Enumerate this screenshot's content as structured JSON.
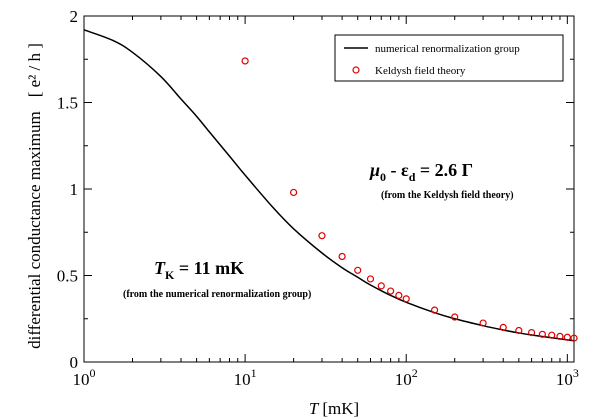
{
  "chart_data": {
    "type": "line",
    "xscale": "log",
    "xlim": [
      1,
      1100
    ],
    "ylim": [
      0,
      2
    ],
    "xticks": [
      {
        "value": 1,
        "base": "10",
        "exp": "0"
      },
      {
        "value": 10,
        "base": "10",
        "exp": "1"
      },
      {
        "value": 100,
        "base": "10",
        "exp": "2"
      },
      {
        "value": 1000,
        "base": "10",
        "exp": "3"
      }
    ],
    "yticks": [
      {
        "value": 0,
        "label": "0"
      },
      {
        "value": 0.5,
        "label": "0.5"
      },
      {
        "value": 1,
        "label": "1"
      },
      {
        "value": 1.5,
        "label": "1.5"
      },
      {
        "value": 2,
        "label": "2"
      }
    ],
    "xlabel": {
      "italic": "T",
      "rest": "[mK]"
    },
    "ylabel": {
      "main": "differential conductance maximum",
      "unit": "[ e² / h ]"
    },
    "series": [
      {
        "name": "numerical renormalization group",
        "kind": "line",
        "color": "#000000",
        "x": [
          1,
          1.5,
          2,
          3,
          4,
          5,
          6,
          8,
          10,
          15,
          20,
          30,
          40,
          50,
          60,
          80,
          100,
          150,
          200,
          300,
          400,
          500,
          600,
          800,
          1000,
          1100
        ],
        "y": [
          1.92,
          1.86,
          1.79,
          1.65,
          1.52,
          1.42,
          1.33,
          1.19,
          1.08,
          0.89,
          0.77,
          0.63,
          0.545,
          0.49,
          0.445,
          0.385,
          0.345,
          0.285,
          0.25,
          0.21,
          0.185,
          0.168,
          0.156,
          0.14,
          0.128,
          0.123
        ]
      },
      {
        "name": "Keldysh field theory",
        "kind": "markers",
        "color": "#e00000",
        "x": [
          10,
          20,
          30,
          40,
          50,
          60,
          70,
          80,
          90,
          100,
          150,
          200,
          300,
          400,
          500,
          600,
          700,
          800,
          900,
          1000,
          1100
        ],
        "y": [
          1.74,
          0.98,
          0.73,
          0.61,
          0.53,
          0.48,
          0.44,
          0.41,
          0.385,
          0.365,
          0.3,
          0.26,
          0.225,
          0.2,
          0.182,
          0.17,
          0.16,
          0.155,
          0.148,
          0.143,
          0.138
        ]
      }
    ],
    "legend": {
      "position": "top-right"
    },
    "annotations": {
      "tk": {
        "italic": "T",
        "sub": "K",
        "rest": " = 11 mK",
        "note": "(from the numerical renormalization group)"
      },
      "mu": {
        "mu": "μ",
        "mu_sub": "0",
        "mid": " - ε",
        "eps_sub": "d",
        "rest": " = 2.6 Γ",
        "note": "(from the Keldysh field theory)"
      }
    }
  }
}
